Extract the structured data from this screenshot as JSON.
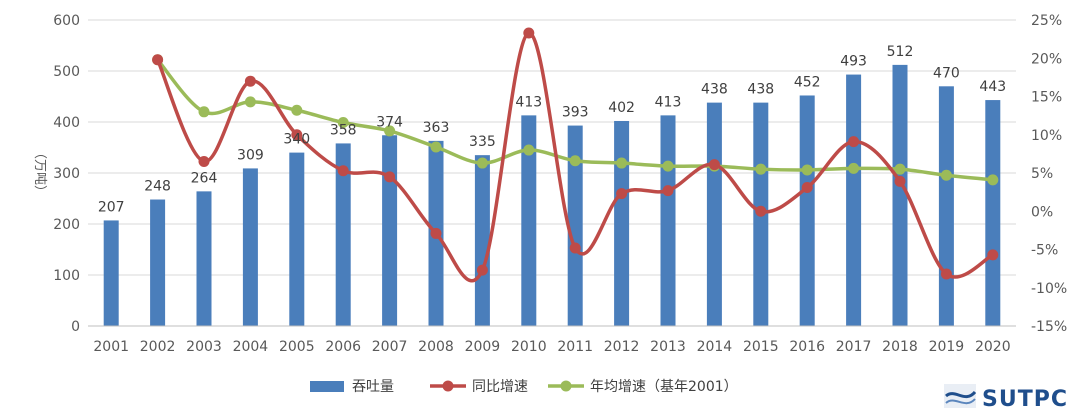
{
  "chart_data": {
    "type": "bar",
    "categories": [
      "2001",
      "2002",
      "2003",
      "2004",
      "2005",
      "2006",
      "2007",
      "2008",
      "2009",
      "2010",
      "2011",
      "2012",
      "2013",
      "2014",
      "2015",
      "2016",
      "2017",
      "2018",
      "2019",
      "2020"
    ],
    "ylabel": "（万吨）",
    "ylim": [
      0,
      600
    ],
    "yticks": [
      "0",
      "100",
      "200",
      "300",
      "400",
      "500",
      "600"
    ],
    "y2lim": [
      -15,
      25
    ],
    "y2ticks": [
      "-15%",
      "-10%",
      "-5%",
      "0%",
      "5%",
      "10%",
      "15%",
      "20%",
      "25%"
    ],
    "series": [
      {
        "name": "吞吐量",
        "type": "bar",
        "axis": "left",
        "color": "#4a7ebb",
        "values": [
          207,
          248,
          264,
          309,
          340,
          358,
          374,
          363,
          335,
          413,
          393,
          402,
          413,
          438,
          438,
          452,
          493,
          512,
          470,
          443
        ],
        "labels": [
          "207",
          "248",
          "264",
          "309",
          "340",
          "358",
          "374",
          "363",
          "335",
          "413",
          "393",
          "402",
          "413",
          "438",
          "438",
          "452",
          "493",
          "512",
          "470",
          "443"
        ]
      },
      {
        "name": "同比增速",
        "type": "line",
        "axis": "right",
        "color": "#be4b48",
        "values": [
          null,
          19.8,
          6.5,
          17.0,
          10.0,
          5.3,
          4.5,
          -2.9,
          -7.7,
          23.3,
          -4.8,
          2.3,
          2.7,
          6.1,
          0.0,
          3.1,
          9.1,
          3.9,
          -8.2,
          -5.7
        ]
      },
      {
        "name": "年均增速（基年2001）",
        "type": "line",
        "axis": "right",
        "color": "#9bbb59",
        "values": [
          null,
          19.8,
          13.0,
          14.3,
          13.2,
          11.6,
          10.5,
          8.4,
          6.3,
          8.0,
          6.6,
          6.3,
          5.9,
          5.9,
          5.5,
          5.4,
          5.6,
          5.5,
          4.7,
          4.1
        ]
      }
    ],
    "legend_position": "bottom",
    "grid": true
  },
  "logo": {
    "text": "SUTPC"
  }
}
